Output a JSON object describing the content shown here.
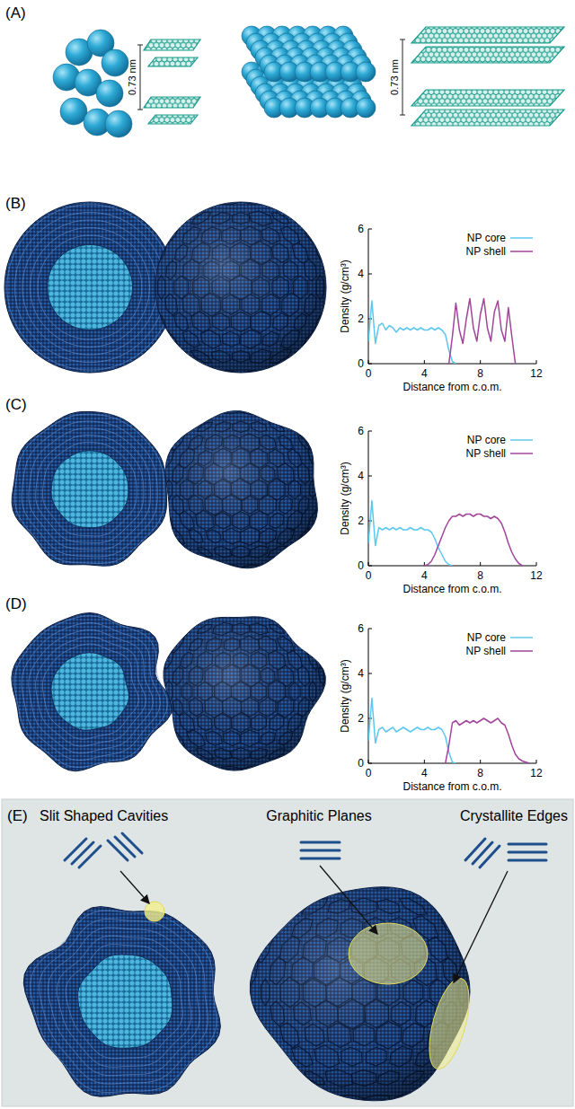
{
  "panel_labels": [
    "(A)",
    "(B)",
    "(C)",
    "(D)",
    "(E)"
  ],
  "panel_a": {
    "scale_labels": [
      "0.73 nm",
      "0.73 nm"
    ]
  },
  "chart_data": [
    {
      "type": "line",
      "x_label": "Distance from c.o.m.",
      "y_label": "Density (g/cm³)",
      "xlim": [
        0,
        12
      ],
      "ylim": [
        0,
        6
      ],
      "xticks": [
        0,
        4,
        8,
        12
      ],
      "yticks": [
        0,
        2,
        4,
        6
      ],
      "legend": "upper right",
      "x": [
        0,
        0.25,
        0.5,
        0.75,
        1,
        1.25,
        1.5,
        1.75,
        2,
        2.25,
        2.5,
        2.75,
        3,
        3.25,
        3.5,
        3.75,
        4,
        4.25,
        4.5,
        4.75,
        5,
        5.25,
        5.5,
        5.75,
        6,
        6.25,
        6.5,
        6.75,
        7,
        7.25,
        7.5,
        7.75,
        8,
        8.25,
        8.5,
        8.75,
        9,
        9.25,
        9.5,
        9.75,
        10,
        10.25,
        10.5,
        10.75,
        11,
        11.25,
        11.5,
        11.75,
        12
      ],
      "series": [
        {
          "name": "NP core",
          "color": "#5bc8ef",
          "values": [
            1.0,
            2.8,
            0.9,
            1.7,
            1.8,
            1.5,
            1.7,
            1.6,
            1.4,
            1.6,
            1.5,
            1.6,
            1.5,
            1.6,
            1.5,
            1.6,
            1.5,
            1.5,
            1.6,
            1.5,
            1.6,
            1.5,
            1.3,
            0.6,
            0.1,
            0,
            null,
            null,
            null,
            null,
            null,
            null,
            null,
            null,
            null,
            null,
            null,
            null,
            null,
            null,
            null,
            null,
            null,
            null,
            null,
            null,
            null,
            null,
            null
          ]
        },
        {
          "name": "NP shell",
          "color": "#a1449c",
          "values": [
            null,
            null,
            null,
            null,
            null,
            null,
            null,
            null,
            null,
            null,
            null,
            null,
            null,
            null,
            null,
            null,
            null,
            null,
            null,
            null,
            null,
            null,
            null,
            0,
            1.2,
            2.7,
            1.5,
            0.9,
            2.0,
            2.9,
            1.6,
            1.0,
            2.2,
            2.9,
            1.6,
            1.0,
            2.3,
            2.8,
            1.5,
            1.0,
            2.5,
            1.2,
            0,
            null,
            null,
            null,
            null,
            null,
            null
          ]
        }
      ]
    },
    {
      "type": "line",
      "x_label": "Distance from c.o.m.",
      "y_label": "Density (g/cm³)",
      "xlim": [
        0,
        12
      ],
      "ylim": [
        0,
        6
      ],
      "xticks": [
        0,
        4,
        8,
        12
      ],
      "yticks": [
        0,
        2,
        4,
        6
      ],
      "legend": "upper right",
      "x": [
        0,
        0.25,
        0.5,
        0.75,
        1,
        1.25,
        1.5,
        1.75,
        2,
        2.25,
        2.5,
        2.75,
        3,
        3.25,
        3.5,
        3.75,
        4,
        4.25,
        4.5,
        4.75,
        5,
        5.25,
        5.5,
        5.75,
        6,
        6.25,
        6.5,
        6.75,
        7,
        7.25,
        7.5,
        7.75,
        8,
        8.25,
        8.5,
        8.75,
        9,
        9.25,
        9.5,
        9.75,
        10,
        10.25,
        10.5,
        10.75,
        11,
        11.25,
        11.5,
        11.75,
        12
      ],
      "series": [
        {
          "name": "NP core",
          "color": "#5bc8ef",
          "values": [
            1.0,
            2.9,
            0.9,
            1.7,
            1.6,
            1.7,
            1.6,
            1.7,
            1.6,
            1.7,
            1.6,
            1.6,
            1.7,
            1.6,
            1.6,
            1.7,
            1.6,
            1.6,
            1.5,
            1.2,
            0.8,
            0.5,
            0.2,
            0.05,
            0,
            null,
            null,
            null,
            null,
            null,
            null,
            null,
            null,
            null,
            null,
            null,
            null,
            null,
            null,
            null,
            null,
            null,
            null,
            null,
            null,
            null,
            null,
            null,
            null
          ]
        },
        {
          "name": "NP shell",
          "color": "#a1449c",
          "values": [
            null,
            null,
            null,
            null,
            null,
            null,
            null,
            null,
            null,
            null,
            null,
            null,
            null,
            null,
            null,
            null,
            0,
            0.05,
            0.2,
            0.5,
            0.9,
            1.3,
            1.7,
            2.0,
            2.2,
            2.2,
            2.3,
            2.2,
            2.3,
            2.3,
            2.2,
            2.3,
            2.3,
            2.2,
            2.2,
            2.1,
            2.2,
            2.1,
            1.9,
            1.5,
            1.0,
            0.6,
            0.3,
            0.1,
            0,
            null,
            null,
            null,
            null
          ]
        }
      ]
    },
    {
      "type": "line",
      "x_label": "Distance from c.o.m.",
      "y_label": "Density (g/cm³)",
      "xlim": [
        0,
        12
      ],
      "ylim": [
        0,
        6
      ],
      "xticks": [
        0,
        4,
        8,
        12
      ],
      "yticks": [
        0,
        2,
        4,
        6
      ],
      "legend": "upper right",
      "x": [
        0,
        0.25,
        0.5,
        0.75,
        1,
        1.25,
        1.5,
        1.75,
        2,
        2.25,
        2.5,
        2.75,
        3,
        3.25,
        3.5,
        3.75,
        4,
        4.25,
        4.5,
        4.75,
        5,
        5.25,
        5.5,
        5.75,
        6,
        6.25,
        6.5,
        6.75,
        7,
        7.25,
        7.5,
        7.75,
        8,
        8.25,
        8.5,
        8.75,
        9,
        9.25,
        9.5,
        9.75,
        10,
        10.25,
        10.5,
        10.75,
        11,
        11.25,
        11.5,
        11.75,
        12
      ],
      "series": [
        {
          "name": "NP core",
          "color": "#5bc8ef",
          "values": [
            1.0,
            2.9,
            0.9,
            1.5,
            1.6,
            1.4,
            1.5,
            1.6,
            1.4,
            1.5,
            1.6,
            1.5,
            1.4,
            1.5,
            1.6,
            1.5,
            1.5,
            1.6,
            1.5,
            1.5,
            1.6,
            1.5,
            1.2,
            0.5,
            0.05,
            0,
            null,
            null,
            null,
            null,
            null,
            null,
            null,
            null,
            null,
            null,
            null,
            null,
            null,
            null,
            null,
            null,
            null,
            null,
            null,
            null,
            null,
            null,
            null
          ]
        },
        {
          "name": "NP shell",
          "color": "#a1449c",
          "values": [
            null,
            null,
            null,
            null,
            null,
            null,
            null,
            null,
            null,
            null,
            null,
            null,
            null,
            null,
            null,
            null,
            null,
            null,
            null,
            null,
            null,
            null,
            0,
            0.8,
            1.8,
            1.9,
            1.7,
            1.8,
            1.9,
            1.8,
            1.9,
            1.8,
            1.9,
            2.0,
            1.9,
            1.8,
            1.9,
            2.0,
            1.8,
            1.7,
            1.3,
            0.8,
            0.4,
            0.2,
            0.1,
            0.05,
            0,
            null,
            null
          ]
        }
      ]
    }
  ],
  "panel_e": {
    "labels": [
      "Slit Shaped Cavities",
      "Graphitic Planes",
      "Crystallite Edges"
    ]
  }
}
